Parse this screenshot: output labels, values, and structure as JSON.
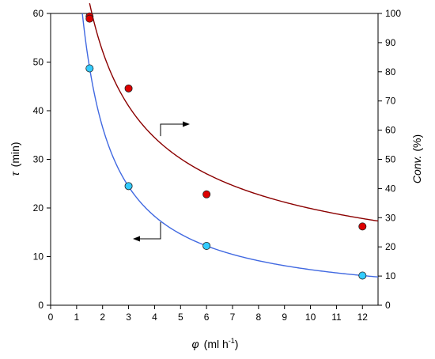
{
  "chart_data": {
    "type": "scatter",
    "x_axis": {
      "label_symbol": "φ",
      "label_units": "(ml h",
      "label_sup": "-1",
      "label_close": ")",
      "range": [
        0,
        12.6
      ],
      "ticks": [
        0,
        1,
        2,
        3,
        4,
        5,
        6,
        7,
        8,
        9,
        10,
        11,
        12
      ]
    },
    "y_left": {
      "label_symbol": "τ",
      "label_units": "(min)",
      "range": [
        0,
        60
      ],
      "ticks": [
        0,
        10,
        20,
        30,
        40,
        50,
        60
      ]
    },
    "y_right": {
      "label_ital": "Conv.",
      "label_units": "(%)",
      "range": [
        0,
        100
      ],
      "ticks": [
        0,
        10,
        20,
        30,
        40,
        50,
        60,
        70,
        80,
        90,
        100
      ]
    },
    "series": [
      {
        "axis": "left",
        "marker_color": "#33ccff",
        "line_color": "#4169e1",
        "points": [
          {
            "x": 1.5,
            "y": 48.7
          },
          {
            "x": 3,
            "y": 24.5
          },
          {
            "x": 6,
            "y": 12.2
          },
          {
            "x": 12,
            "y": 6.1
          }
        ],
        "fit": {
          "model": "a/x",
          "a": 73.2,
          "x_from": 1.22,
          "x_to": 12.6
        }
      },
      {
        "axis": "right",
        "marker_color": "#dd0000",
        "line_color": "#8b0000",
        "points": [
          {
            "x": 1.5,
            "y": 99.0
          },
          {
            "x": 1.5,
            "y": 98.2
          },
          {
            "x": 3,
            "y": 74.3
          },
          {
            "x": 6,
            "y": 38.0
          },
          {
            "x": 12,
            "y": 27.0
          }
        ],
        "fit": {
          "model": "a*x^b",
          "a": 132,
          "b": -0.6,
          "x_from": 1.5,
          "x_to": 12.6
        }
      }
    ],
    "annotations": [
      {
        "type": "arrow",
        "direction": "right",
        "target_axis": "right",
        "at_series": 1
      },
      {
        "type": "arrow",
        "direction": "left",
        "target_axis": "left",
        "at_series": 0
      }
    ],
    "grid": false,
    "legend": "none"
  }
}
